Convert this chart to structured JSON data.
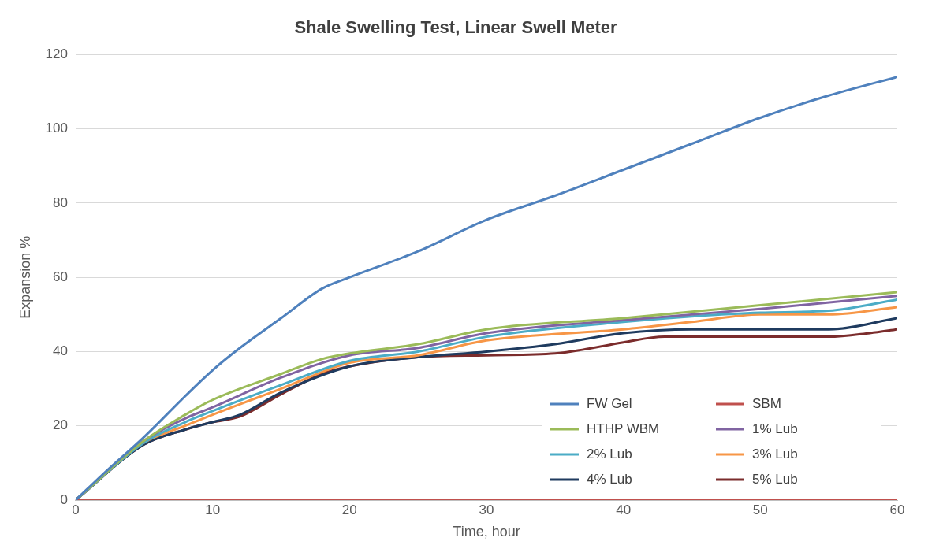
{
  "chart_data": {
    "type": "line",
    "title": "Shale Swelling Test, Linear Swell Meter",
    "xlabel": "Time, hour",
    "ylabel": "Expansion %",
    "xlim": [
      0,
      60
    ],
    "xticks": [
      0,
      10,
      20,
      30,
      40,
      50,
      60
    ],
    "ylim": [
      0,
      120
    ],
    "yticks": [
      0,
      20,
      40,
      60,
      80,
      100,
      120
    ],
    "grid": "y",
    "legend": "bottom right",
    "marker": "none",
    "line_style": "solid",
    "series": [
      {
        "name": "FW Gel",
        "color": "#4f81bd",
        "x": [
          0,
          2,
          5,
          8,
          10,
          12,
          15,
          18,
          20,
          25,
          30,
          35,
          40,
          45,
          50,
          55,
          60
        ],
        "values": [
          0,
          7,
          17,
          28,
          35,
          41,
          49,
          57,
          60,
          67,
          75.5,
          82,
          89,
          96,
          103,
          109,
          114
        ]
      },
      {
        "name": "SBM",
        "color": "#c0504d",
        "x": [
          0,
          60
        ],
        "values": [
          0,
          0
        ]
      },
      {
        "name": "HTHP WBM",
        "color": "#9bbb59",
        "x": [
          0,
          5,
          8,
          10,
          15,
          18,
          20,
          25,
          30,
          40,
          50,
          60
        ],
        "values": [
          0,
          16,
          23,
          27,
          34,
          38,
          39.5,
          42,
          46,
          49,
          52.5,
          56
        ]
      },
      {
        "name": "1% Lub",
        "color": "#8064a2",
        "x": [
          0,
          5,
          8,
          10,
          15,
          20,
          25,
          30,
          40,
          50,
          60
        ],
        "values": [
          0,
          16,
          22,
          25,
          33,
          39,
          41,
          45,
          48.5,
          51.5,
          55
        ]
      },
      {
        "name": "2% Lub",
        "color": "#4bacc6",
        "x": [
          0,
          5,
          8,
          10,
          15,
          20,
          25,
          30,
          40,
          45,
          50,
          55,
          60
        ],
        "values": [
          0,
          15.5,
          21,
          24,
          31,
          37.5,
          40,
          44,
          48,
          49.5,
          50.5,
          51,
          54
        ]
      },
      {
        "name": "3% Lub",
        "color": "#f79646",
        "x": [
          0,
          5,
          8,
          10,
          15,
          20,
          25,
          30,
          40,
          45,
          50,
          55,
          60
        ],
        "values": [
          0,
          15.5,
          20,
          23,
          30,
          37,
          39,
          43,
          46,
          48,
          50,
          50,
          52
        ]
      },
      {
        "name": "4% Lub",
        "color": "#1f3b5f",
        "x": [
          0,
          5,
          8,
          10,
          12,
          15,
          20,
          25,
          30,
          35,
          40,
          45,
          50,
          55,
          60
        ],
        "values": [
          0,
          15,
          19,
          21,
          23,
          29,
          36,
          38.5,
          40,
          42,
          45,
          46,
          46,
          46,
          49
        ]
      },
      {
        "name": "5% Lub",
        "color": "#7b2c2c",
        "x": [
          0,
          5,
          8,
          10,
          12,
          15,
          18,
          20,
          25,
          30,
          35,
          37,
          40,
          43,
          50,
          55,
          58,
          60
        ],
        "values": [
          0,
          15,
          19,
          21,
          22.5,
          28.5,
          34,
          36,
          38.5,
          39,
          39.5,
          40.5,
          42.5,
          44,
          44,
          44,
          45,
          46
        ]
      }
    ]
  }
}
